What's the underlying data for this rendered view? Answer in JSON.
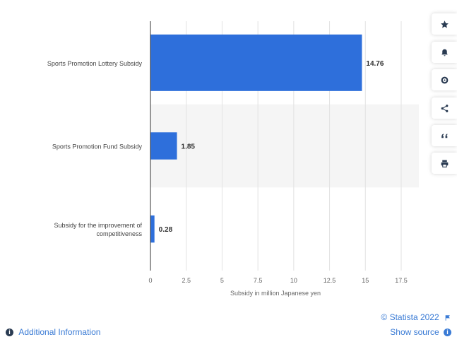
{
  "chart_data": {
    "type": "bar",
    "orientation": "horizontal",
    "categories": [
      "Sports Promotion Lottery Subsidy",
      "Sports Promotion Fund Subsidy",
      "Subsidy for the improvement of competitiveness"
    ],
    "values": [
      14.76,
      1.85,
      0.28
    ],
    "value_labels": [
      "14.76",
      "1.85",
      "0.28"
    ],
    "xlabel": "Subsidy in million Japanese yen",
    "xlim": [
      0,
      17.5
    ],
    "xticks": [
      "0",
      "2.5",
      "5",
      "7.5",
      "10",
      "12.5",
      "15",
      "17.5"
    ],
    "bar_color": "#2e6fdb",
    "grid": true
  },
  "sidebar": {
    "buttons": [
      {
        "name": "favorite",
        "icon": "star-icon"
      },
      {
        "name": "notify",
        "icon": "bell-icon"
      },
      {
        "name": "settings",
        "icon": "gear-icon"
      },
      {
        "name": "share",
        "icon": "share-icon"
      },
      {
        "name": "cite",
        "icon": "quote-icon"
      },
      {
        "name": "print",
        "icon": "print-icon"
      }
    ]
  },
  "footer": {
    "credit": "© Statista 2022",
    "additional_info": "Additional Information",
    "show_source": "Show source"
  },
  "colors": {
    "accent": "#3a7bd5",
    "bar": "#2e6fdb",
    "band": "#f5f5f5"
  }
}
